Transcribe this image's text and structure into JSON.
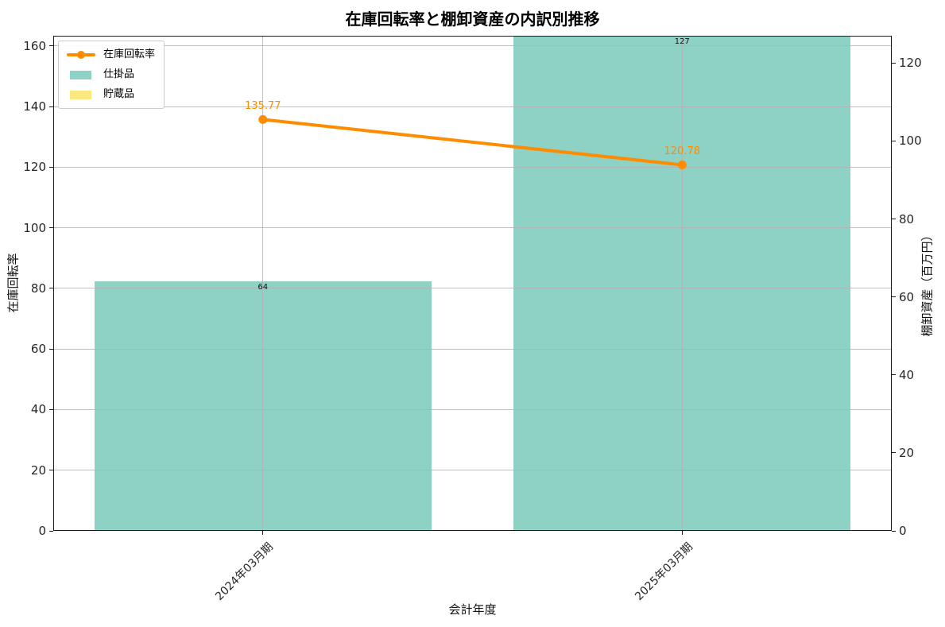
{
  "chart_data": {
    "type": "combo-line-stacked-bar",
    "title": "在庫回転率と棚卸資産の内訳別推移",
    "xlabel": "会計年度",
    "ylabel_left": "在庫回転率",
    "ylabel_right": "棚卸資産（百万円）",
    "categories": [
      "2024年03月期",
      "2025年03月期"
    ],
    "line_series": {
      "name": "在庫回転率",
      "axis": "left",
      "values": [
        135.77,
        120.78
      ],
      "point_labels": [
        "135.77",
        "120.78"
      ],
      "color": "#ff8c00"
    },
    "bar_series": [
      {
        "name": "仕掛品",
        "axis": "right",
        "values": [
          64,
          127
        ],
        "color": "#8ed2c5"
      },
      {
        "name": "貯蔵品",
        "axis": "right",
        "values": [
          0,
          0
        ],
        "color": "#fbe87f"
      }
    ],
    "bar_total_labels": [
      "64",
      "127"
    ],
    "left_axis": {
      "min": 0,
      "max": 163.4,
      "ticks": [
        0,
        20,
        40,
        60,
        80,
        100,
        120,
        140,
        160
      ]
    },
    "right_axis": {
      "min": 0,
      "max": 127,
      "ticks": [
        0,
        20,
        40,
        60,
        80,
        100,
        120
      ]
    },
    "grid": true,
    "legend": {
      "position": "upper-left",
      "items": [
        {
          "label": "在庫回転率",
          "swatch": "line-marker",
          "color": "#ff8c00"
        },
        {
          "label": "仕掛品",
          "swatch": "patch",
          "color": "#8ed2c5"
        },
        {
          "label": "貯蔵品",
          "swatch": "patch",
          "color": "#fbe87f"
        }
      ]
    }
  },
  "colors": {
    "accent_orange": "#ff8c00",
    "bar_teal": "#8ed2c5",
    "bar_yellow": "#fbe87f",
    "grid": "#b0b0b0",
    "text": "#1a1a1a",
    "background": "#ffffff"
  }
}
